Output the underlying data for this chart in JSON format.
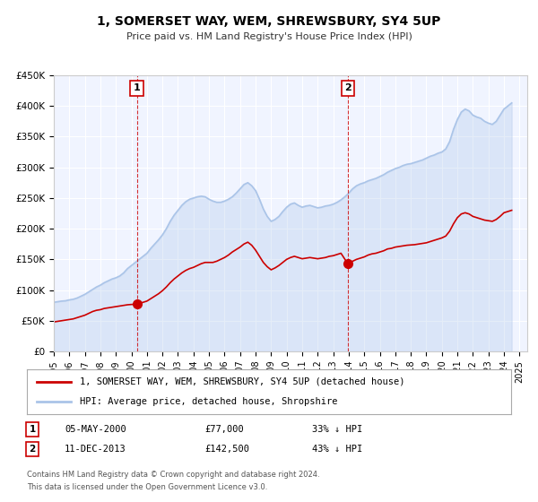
{
  "title": "1, SOMERSET WAY, WEM, SHREWSBURY, SY4 5UP",
  "subtitle": "Price paid vs. HM Land Registry's House Price Index (HPI)",
  "background_color": "#ffffff",
  "plot_bg_color": "#f0f4ff",
  "grid_color": "#ffffff",
  "hpi_color": "#aac4e8",
  "property_color": "#cc0000",
  "ylim": [
    0,
    450000
  ],
  "xlim_start": 1995.0,
  "xlim_end": 2025.5,
  "yticks": [
    0,
    50000,
    100000,
    150000,
    200000,
    250000,
    300000,
    350000,
    400000,
    450000
  ],
  "ytick_labels": [
    "£0",
    "£50K",
    "£100K",
    "£150K",
    "£200K",
    "£250K",
    "£300K",
    "£350K",
    "£400K",
    "£450K"
  ],
  "xticks": [
    1995,
    1996,
    1997,
    1998,
    1999,
    2000,
    2001,
    2002,
    2003,
    2004,
    2005,
    2006,
    2007,
    2008,
    2009,
    2010,
    2011,
    2012,
    2013,
    2014,
    2015,
    2016,
    2017,
    2018,
    2019,
    2020,
    2021,
    2022,
    2023,
    2024,
    2025
  ],
  "sale1_x": 2000.35,
  "sale1_y": 77000,
  "sale1_label": "1",
  "sale1_date": "05-MAY-2000",
  "sale1_price": "£77,000",
  "sale1_hpi": "33% ↓ HPI",
  "sale2_x": 2013.95,
  "sale2_y": 142500,
  "sale2_label": "2",
  "sale2_date": "11-DEC-2013",
  "sale2_price": "£142,500",
  "sale2_hpi": "43% ↓ HPI",
  "legend_line1": "1, SOMERSET WAY, WEM, SHREWSBURY, SY4 5UP (detached house)",
  "legend_line2": "HPI: Average price, detached house, Shropshire",
  "footer1": "Contains HM Land Registry data © Crown copyright and database right 2024.",
  "footer2": "This data is licensed under the Open Government Licence v3.0.",
  "hpi_data_x": [
    1995.0,
    1995.25,
    1995.5,
    1995.75,
    1996.0,
    1996.25,
    1996.5,
    1996.75,
    1997.0,
    1997.25,
    1997.5,
    1997.75,
    1998.0,
    1998.25,
    1998.5,
    1998.75,
    1999.0,
    1999.25,
    1999.5,
    1999.75,
    2000.0,
    2000.25,
    2000.5,
    2000.75,
    2001.0,
    2001.25,
    2001.5,
    2001.75,
    2002.0,
    2002.25,
    2002.5,
    2002.75,
    2003.0,
    2003.25,
    2003.5,
    2003.75,
    2004.0,
    2004.25,
    2004.5,
    2004.75,
    2005.0,
    2005.25,
    2005.5,
    2005.75,
    2006.0,
    2006.25,
    2006.5,
    2006.75,
    2007.0,
    2007.25,
    2007.5,
    2007.75,
    2008.0,
    2008.25,
    2008.5,
    2008.75,
    2009.0,
    2009.25,
    2009.5,
    2009.75,
    2010.0,
    2010.25,
    2010.5,
    2010.75,
    2011.0,
    2011.25,
    2011.5,
    2011.75,
    2012.0,
    2012.25,
    2012.5,
    2012.75,
    2013.0,
    2013.25,
    2013.5,
    2013.75,
    2014.0,
    2014.25,
    2014.5,
    2014.75,
    2015.0,
    2015.25,
    2015.5,
    2015.75,
    2016.0,
    2016.25,
    2016.5,
    2016.75,
    2017.0,
    2017.25,
    2017.5,
    2017.75,
    2018.0,
    2018.25,
    2018.5,
    2018.75,
    2019.0,
    2019.25,
    2019.5,
    2019.75,
    2020.0,
    2020.25,
    2020.5,
    2020.75,
    2021.0,
    2021.25,
    2021.5,
    2021.75,
    2022.0,
    2022.25,
    2022.5,
    2022.75,
    2023.0,
    2023.25,
    2023.5,
    2023.75,
    2024.0,
    2024.25,
    2024.5
  ],
  "hpi_data_y": [
    80000,
    81000,
    82000,
    82500,
    84000,
    85000,
    87000,
    90000,
    93000,
    97000,
    101000,
    105000,
    108000,
    112000,
    115000,
    118000,
    120000,
    123000,
    128000,
    135000,
    140000,
    145000,
    150000,
    155000,
    160000,
    168000,
    175000,
    182000,
    190000,
    200000,
    212000,
    222000,
    230000,
    238000,
    244000,
    248000,
    250000,
    252000,
    253000,
    252000,
    248000,
    245000,
    243000,
    243000,
    245000,
    248000,
    252000,
    258000,
    265000,
    272000,
    275000,
    270000,
    262000,
    248000,
    232000,
    220000,
    212000,
    215000,
    220000,
    228000,
    235000,
    240000,
    242000,
    238000,
    235000,
    237000,
    238000,
    236000,
    234000,
    235000,
    237000,
    238000,
    240000,
    243000,
    247000,
    252000,
    258000,
    265000,
    270000,
    273000,
    275000,
    278000,
    280000,
    282000,
    285000,
    288000,
    292000,
    295000,
    298000,
    300000,
    303000,
    305000,
    306000,
    308000,
    310000,
    312000,
    315000,
    318000,
    320000,
    323000,
    325000,
    330000,
    342000,
    362000,
    378000,
    390000,
    395000,
    392000,
    385000,
    382000,
    380000,
    375000,
    372000,
    370000,
    375000,
    385000,
    395000,
    400000,
    405000
  ],
  "prop_data_x": [
    1995.0,
    1995.25,
    1995.5,
    1995.75,
    1996.0,
    1996.25,
    1996.5,
    1996.75,
    1997.0,
    1997.25,
    1997.5,
    1997.75,
    1998.0,
    1998.25,
    1998.5,
    1998.75,
    1999.0,
    1999.25,
    1999.5,
    1999.75,
    2000.0,
    2000.35,
    2000.5,
    2000.75,
    2001.0,
    2001.25,
    2001.5,
    2001.75,
    2002.0,
    2002.25,
    2002.5,
    2002.75,
    2003.0,
    2003.25,
    2003.5,
    2003.75,
    2004.0,
    2004.25,
    2004.5,
    2004.75,
    2005.0,
    2005.25,
    2005.5,
    2005.75,
    2006.0,
    2006.25,
    2006.5,
    2006.75,
    2007.0,
    2007.25,
    2007.5,
    2007.75,
    2008.0,
    2008.25,
    2008.5,
    2008.75,
    2009.0,
    2009.25,
    2009.5,
    2009.75,
    2010.0,
    2010.25,
    2010.5,
    2010.75,
    2011.0,
    2011.25,
    2011.5,
    2011.75,
    2012.0,
    2012.25,
    2012.5,
    2012.75,
    2013.0,
    2013.25,
    2013.5,
    2013.95,
    2014.0,
    2014.25,
    2014.5,
    2014.75,
    2015.0,
    2015.25,
    2015.5,
    2015.75,
    2016.0,
    2016.25,
    2016.5,
    2016.75,
    2017.0,
    2017.25,
    2017.5,
    2017.75,
    2018.0,
    2018.25,
    2018.5,
    2018.75,
    2019.0,
    2019.25,
    2019.5,
    2019.75,
    2020.0,
    2020.25,
    2020.5,
    2020.75,
    2021.0,
    2021.25,
    2021.5,
    2021.75,
    2022.0,
    2022.25,
    2022.5,
    2022.75,
    2023.0,
    2023.25,
    2023.5,
    2023.75,
    2024.0,
    2024.25,
    2024.5
  ],
  "prop_data_y": [
    48000,
    49000,
    50000,
    51000,
    52000,
    53000,
    55000,
    57000,
    59000,
    62000,
    65000,
    67000,
    68000,
    70000,
    71000,
    72000,
    73000,
    74000,
    75000,
    76000,
    76500,
    77000,
    78000,
    80000,
    82000,
    86000,
    90000,
    94000,
    99000,
    105000,
    112000,
    118000,
    123000,
    128000,
    132000,
    135000,
    137000,
    140000,
    143000,
    145000,
    145000,
    145000,
    147000,
    150000,
    153000,
    157000,
    162000,
    166000,
    170000,
    175000,
    178000,
    173000,
    165000,
    155000,
    145000,
    138000,
    133000,
    136000,
    140000,
    145000,
    150000,
    153000,
    155000,
    153000,
    151000,
    152000,
    153000,
    152000,
    151000,
    152000,
    153000,
    155000,
    156000,
    158000,
    160000,
    142500,
    143000,
    147000,
    150000,
    152000,
    154000,
    157000,
    159000,
    160000,
    162000,
    164000,
    167000,
    168000,
    170000,
    171000,
    172000,
    173000,
    173500,
    174000,
    175000,
    176000,
    177000,
    179000,
    181000,
    183000,
    185000,
    188000,
    196000,
    208000,
    218000,
    224000,
    226000,
    224000,
    220000,
    218000,
    216000,
    214000,
    213000,
    212000,
    215000,
    220000,
    226000,
    228000,
    230000
  ]
}
